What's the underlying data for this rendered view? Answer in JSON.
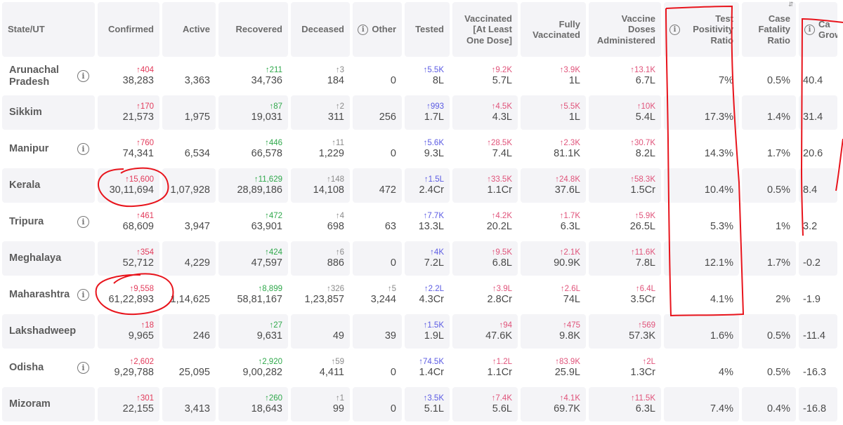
{
  "headers": {
    "state": "State/UT",
    "confirmed": "Confirmed",
    "active": "Active",
    "recovered": "Recovered",
    "deceased": "Deceased",
    "other": "Other",
    "tested": "Tested",
    "vaccinated_one": "Vaccinated [At Least One Dose]",
    "fully_vaccinated": "Fully Vaccinated",
    "doses": "Vaccine Doses Administered",
    "tpr": "Test Positivity Ratio",
    "cfr": "Case Fatality Ratio",
    "growth": "Ca Grow"
  },
  "sort_icon": "sort-icon",
  "annotation_color": "#e8141c",
  "rows": [
    {
      "state": "Arunachal Pradesh",
      "info": true,
      "confirmed_delta": "↑404",
      "confirmed": "38,283",
      "active": "3,363",
      "recovered_delta": "↑211",
      "recovered": "34,736",
      "deceased_delta": "↑3",
      "deceased": "184",
      "other_delta": "",
      "other": "0",
      "tested_delta": "↑5.5K",
      "tested": "8L",
      "vacc_delta": "↑9.2K",
      "vacc": "5.7L",
      "fully_delta": "↑3.9K",
      "fully": "1L",
      "doses_delta": "↑13.1K",
      "doses": "6.7L",
      "tpr": "7%",
      "cfr": "0.5%",
      "growth": "40.4"
    },
    {
      "state": "Sikkim",
      "info": false,
      "confirmed_delta": "↑170",
      "confirmed": "21,573",
      "active": "1,975",
      "recovered_delta": "↑87",
      "recovered": "19,031",
      "deceased_delta": "↑2",
      "deceased": "311",
      "other_delta": "",
      "other": "256",
      "tested_delta": "↑993",
      "tested": "1.7L",
      "vacc_delta": "↑4.5K",
      "vacc": "4.3L",
      "fully_delta": "↑5.5K",
      "fully": "1L",
      "doses_delta": "↑10K",
      "doses": "5.4L",
      "tpr": "17.3%",
      "cfr": "1.4%",
      "growth": "31.4"
    },
    {
      "state": "Manipur",
      "info": true,
      "confirmed_delta": "↑760",
      "confirmed": "74,341",
      "active": "6,534",
      "recovered_delta": "↑446",
      "recovered": "66,578",
      "deceased_delta": "↑11",
      "deceased": "1,229",
      "other_delta": "",
      "other": "0",
      "tested_delta": "↑5.6K",
      "tested": "9.3L",
      "vacc_delta": "↑28.5K",
      "vacc": "7.4L",
      "fully_delta": "↑2.3K",
      "fully": "81.1K",
      "doses_delta": "↑30.7K",
      "doses": "8.2L",
      "tpr": "14.3%",
      "cfr": "1.7%",
      "growth": "20.6"
    },
    {
      "state": "Kerala",
      "info": false,
      "confirmed_delta": "↑15,600",
      "confirmed": "30,11,694",
      "active": "1,07,928",
      "recovered_delta": "↑11,629",
      "recovered": "28,89,186",
      "deceased_delta": "↑148",
      "deceased": "14,108",
      "other_delta": "",
      "other": "472",
      "tested_delta": "↑1.5L",
      "tested": "2.4Cr",
      "vacc_delta": "↑33.5K",
      "vacc": "1.1Cr",
      "fully_delta": "↑24.8K",
      "fully": "37.6L",
      "doses_delta": "↑58.3K",
      "doses": "1.5Cr",
      "tpr": "10.4%",
      "cfr": "0.5%",
      "growth": "8.4"
    },
    {
      "state": "Tripura",
      "info": true,
      "confirmed_delta": "↑461",
      "confirmed": "68,609",
      "active": "3,947",
      "recovered_delta": "↑472",
      "recovered": "63,901",
      "deceased_delta": "↑4",
      "deceased": "698",
      "other_delta": "",
      "other": "63",
      "tested_delta": "↑7.7K",
      "tested": "13.3L",
      "vacc_delta": "↑4.2K",
      "vacc": "20.2L",
      "fully_delta": "↑1.7K",
      "fully": "6.3L",
      "doses_delta": "↑5.9K",
      "doses": "26.5L",
      "tpr": "5.3%",
      "cfr": "1%",
      "growth": "3.2"
    },
    {
      "state": "Meghalaya",
      "info": false,
      "confirmed_delta": "↑354",
      "confirmed": "52,712",
      "active": "4,229",
      "recovered_delta": "↑424",
      "recovered": "47,597",
      "deceased_delta": "↑6",
      "deceased": "886",
      "other_delta": "",
      "other": "0",
      "tested_delta": "↑4K",
      "tested": "7.2L",
      "vacc_delta": "↑9.5K",
      "vacc": "6.8L",
      "fully_delta": "↑2.1K",
      "fully": "90.9K",
      "doses_delta": "↑11.6K",
      "doses": "7.8L",
      "tpr": "12.1%",
      "cfr": "1.7%",
      "growth": "-0.2"
    },
    {
      "state": "Maharashtra",
      "info": true,
      "confirmed_delta": "↑9,558",
      "confirmed": "61,22,893",
      "active": "1,14,625",
      "recovered_delta": "↑8,899",
      "recovered": "58,81,167",
      "deceased_delta": "↑326",
      "deceased": "1,23,857",
      "other_delta": "↑5",
      "other": "3,244",
      "tested_delta": "↑2.2L",
      "tested": "4.3Cr",
      "vacc_delta": "↑3.9L",
      "vacc": "2.8Cr",
      "fully_delta": "↑2.6L",
      "fully": "74L",
      "doses_delta": "↑6.4L",
      "doses": "3.5Cr",
      "tpr": "4.1%",
      "cfr": "2%",
      "growth": "-1.9"
    },
    {
      "state": "Lakshadweep",
      "info": false,
      "confirmed_delta": "↑18",
      "confirmed": "9,965",
      "active": "246",
      "recovered_delta": "↑27",
      "recovered": "9,631",
      "deceased_delta": "",
      "deceased": "49",
      "other_delta": "",
      "other": "39",
      "tested_delta": "↑1.5K",
      "tested": "1.9L",
      "vacc_delta": "↑94",
      "vacc": "47.6K",
      "fully_delta": "↑475",
      "fully": "9.8K",
      "doses_delta": "↑569",
      "doses": "57.3K",
      "tpr": "1.6%",
      "cfr": "0.5%",
      "growth": "-11.4"
    },
    {
      "state": "Odisha",
      "info": true,
      "confirmed_delta": "↑2,602",
      "confirmed": "9,29,788",
      "active": "25,095",
      "recovered_delta": "↑2,920",
      "recovered": "9,00,282",
      "deceased_delta": "↑59",
      "deceased": "4,411",
      "other_delta": "",
      "other": "0",
      "tested_delta": "↑74.5K",
      "tested": "1.4Cr",
      "vacc_delta": "↑1.2L",
      "vacc": "1.1Cr",
      "fully_delta": "↑83.9K",
      "fully": "25.9L",
      "doses_delta": "↑2L",
      "doses": "1.3Cr",
      "tpr": "4%",
      "cfr": "0.5%",
      "growth": "-16.3"
    },
    {
      "state": "Mizoram",
      "info": false,
      "confirmed_delta": "↑301",
      "confirmed": "22,155",
      "active": "3,413",
      "recovered_delta": "↑260",
      "recovered": "18,643",
      "deceased_delta": "↑1",
      "deceased": "99",
      "other_delta": "",
      "other": "0",
      "tested_delta": "↑3.5K",
      "tested": "5.1L",
      "vacc_delta": "↑7.4K",
      "vacc": "5.6L",
      "fully_delta": "↑4.1K",
      "fully": "69.7K",
      "doses_delta": "↑11.5K",
      "doses": "6.3L",
      "tpr": "7.4%",
      "cfr": "0.4%",
      "growth": "-16.8"
    }
  ]
}
